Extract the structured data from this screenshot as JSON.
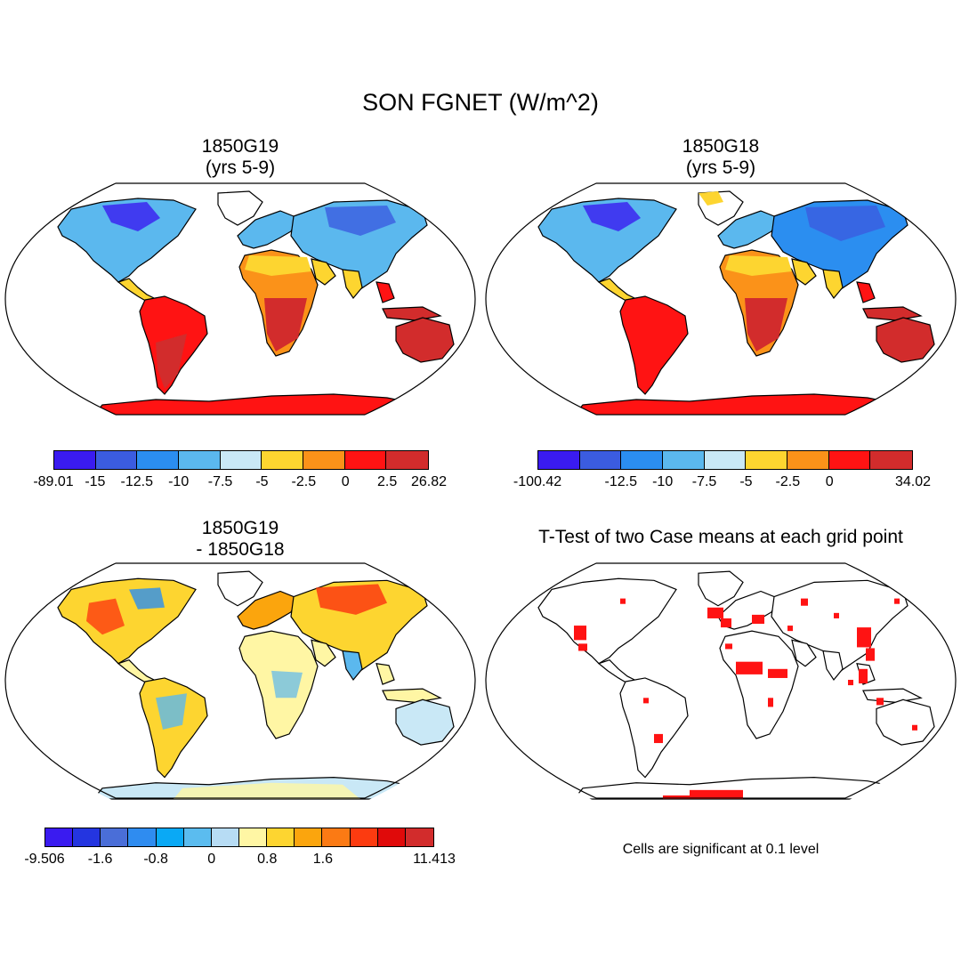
{
  "title": "SON FGNET (W/m^2)",
  "panels": [
    {
      "id": "p1",
      "title_line1": "1850G19",
      "title_line2": "(yrs 5-9)"
    },
    {
      "id": "p2",
      "title_line1": "1850G18",
      "title_line2": "(yrs 5-9)"
    },
    {
      "id": "p3",
      "title_line1": "1850G19",
      "title_line2": "- 1850G18"
    },
    {
      "id": "p4",
      "title_line1": "T-Test of two Case means at each grid point"
    }
  ],
  "colorbars": {
    "cb1": {
      "colors": [
        "#3a1bf0",
        "#3b5ce0",
        "#2b8ef0",
        "#5bb8ee",
        "#c9e8f6",
        "#fdd530",
        "#fb9219",
        "#ff1313",
        "#d22c2c"
      ],
      "labels": [
        "-89.01",
        "-15",
        "-12.5",
        "-10",
        "-7.5",
        "-5",
        "-2.5",
        "0",
        "2.5",
        "26.82"
      ]
    },
    "cb2": {
      "colors": [
        "#3a1bf0",
        "#3b5ce0",
        "#2b8ef0",
        "#5bb8ee",
        "#c9e8f6",
        "#fdd530",
        "#fb9219",
        "#ff1313",
        "#d22c2c"
      ],
      "labels": [
        "-100.42",
        "",
        "-12.5",
        "-10",
        "-7.5",
        "-5",
        "-2.5",
        "0",
        "",
        "34.02"
      ]
    },
    "cb3": {
      "colors": [
        "#3a1bf0",
        "#2435e0",
        "#4a6ed8",
        "#2f8cf0",
        "#0aa9f5",
        "#5bbcef",
        "#b7dcf4",
        "#fff6a4",
        "#fdd530",
        "#fba50d",
        "#fb7a14",
        "#fc3b10",
        "#e00a0a",
        "#d22c2c"
      ],
      "labels": [
        "-9.506",
        "",
        "-1.6",
        "",
        "-0.8",
        "",
        "0",
        "",
        "0.8",
        "",
        "1.6",
        "",
        "",
        "",
        "11.413"
      ]
    }
  },
  "note": "Cells are significant at 0.1 level"
}
